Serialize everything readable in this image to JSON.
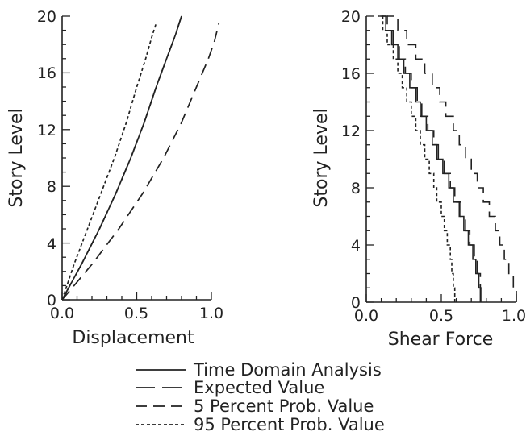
{
  "chart_data": [
    {
      "type": "line",
      "xlabel": "Displacement",
      "ylabel": "Story Level",
      "xlim": [
        0,
        1.0
      ],
      "ylim": [
        0,
        20
      ],
      "xticks": [
        "0.0",
        "0.5",
        "1.0"
      ],
      "yticks": [
        "0",
        "4",
        "8",
        "12",
        "16",
        "20"
      ],
      "series": [
        {
          "name": "Time Domain Analysis",
          "x": [
            0,
            0.13,
            0.25,
            0.36,
            0.46,
            0.55,
            0.63,
            0.7,
            0.76,
            0.8
          ],
          "y": [
            0,
            2.5,
            5,
            7.5,
            10,
            12.5,
            15,
            17,
            18.7,
            20
          ]
        },
        {
          "name": "Expected Value",
          "x": [
            0,
            0.13,
            0.25,
            0.36,
            0.46,
            0.55,
            0.63,
            0.7,
            0.76,
            0.8
          ],
          "y": [
            0,
            2.5,
            5,
            7.5,
            10,
            12.5,
            15,
            17,
            18.7,
            20
          ]
        },
        {
          "name": "5 Percent Prob. Value",
          "x": [
            0,
            0.2,
            0.38,
            0.54,
            0.68,
            0.8,
            0.9,
            0.98,
            1.02,
            1.05
          ],
          "y": [
            0,
            2.5,
            5,
            7.5,
            10,
            12.5,
            15,
            17,
            18.2,
            19.5
          ]
        },
        {
          "name": "95 Percent Prob. Value",
          "x": [
            0,
            0.08,
            0.17,
            0.26,
            0.35,
            0.43,
            0.5,
            0.56,
            0.6,
            0.63
          ],
          "y": [
            0,
            2.5,
            5,
            7.5,
            10,
            12.5,
            15,
            17,
            18.5,
            19.5
          ]
        }
      ]
    },
    {
      "type": "line",
      "xlabel": "Shear Force",
      "ylabel": "Story Level",
      "xlim": [
        0,
        1.0
      ],
      "ylim": [
        0,
        20
      ],
      "xticks": [
        "0.0",
        "0.5",
        "1.0"
      ],
      "yticks": [
        "0",
        "4",
        "8",
        "12",
        "16",
        "20"
      ],
      "series": [
        {
          "name": "Time Domain Analysis",
          "values": [
            0.76,
            0.75,
            0.73,
            0.71,
            0.68,
            0.65,
            0.62,
            0.58,
            0.55,
            0.51,
            0.47,
            0.44,
            0.4,
            0.36,
            0.33,
            0.29,
            0.25,
            0.21,
            0.17,
            0.13,
            0.09
          ]
        },
        {
          "name": "Expected Value",
          "values": [
            0.77,
            0.76,
            0.74,
            0.72,
            0.69,
            0.66,
            0.63,
            0.59,
            0.56,
            0.52,
            0.48,
            0.45,
            0.41,
            0.37,
            0.34,
            0.3,
            0.26,
            0.22,
            0.18,
            0.14,
            0.1
          ]
        },
        {
          "name": "5 Percent Prob. Value",
          "values": [
            1.0,
            0.98,
            0.95,
            0.92,
            0.89,
            0.86,
            0.82,
            0.78,
            0.74,
            0.7,
            0.66,
            0.62,
            0.58,
            0.53,
            0.49,
            0.44,
            0.39,
            0.33,
            0.27,
            0.21,
            0.14
          ]
        },
        {
          "name": "95 Percent Prob. Value",
          "values": [
            0.59,
            0.58,
            0.57,
            0.56,
            0.54,
            0.52,
            0.5,
            0.47,
            0.45,
            0.42,
            0.39,
            0.36,
            0.33,
            0.3,
            0.27,
            0.24,
            0.21,
            0.18,
            0.14,
            0.11,
            0.08
          ]
        }
      ]
    }
  ],
  "legend": {
    "items": [
      {
        "label": "Time Domain Analysis",
        "dash": ""
      },
      {
        "label": "Expected Value",
        "dash": "24 9"
      },
      {
        "label": "5 Percent Prob. Value",
        "dash": "14 8"
      },
      {
        "label": "95 Percent Prob. Value",
        "dash": "4 3"
      }
    ]
  },
  "style_colors": {
    "ink": "#222222",
    "background": "#ffffff"
  }
}
